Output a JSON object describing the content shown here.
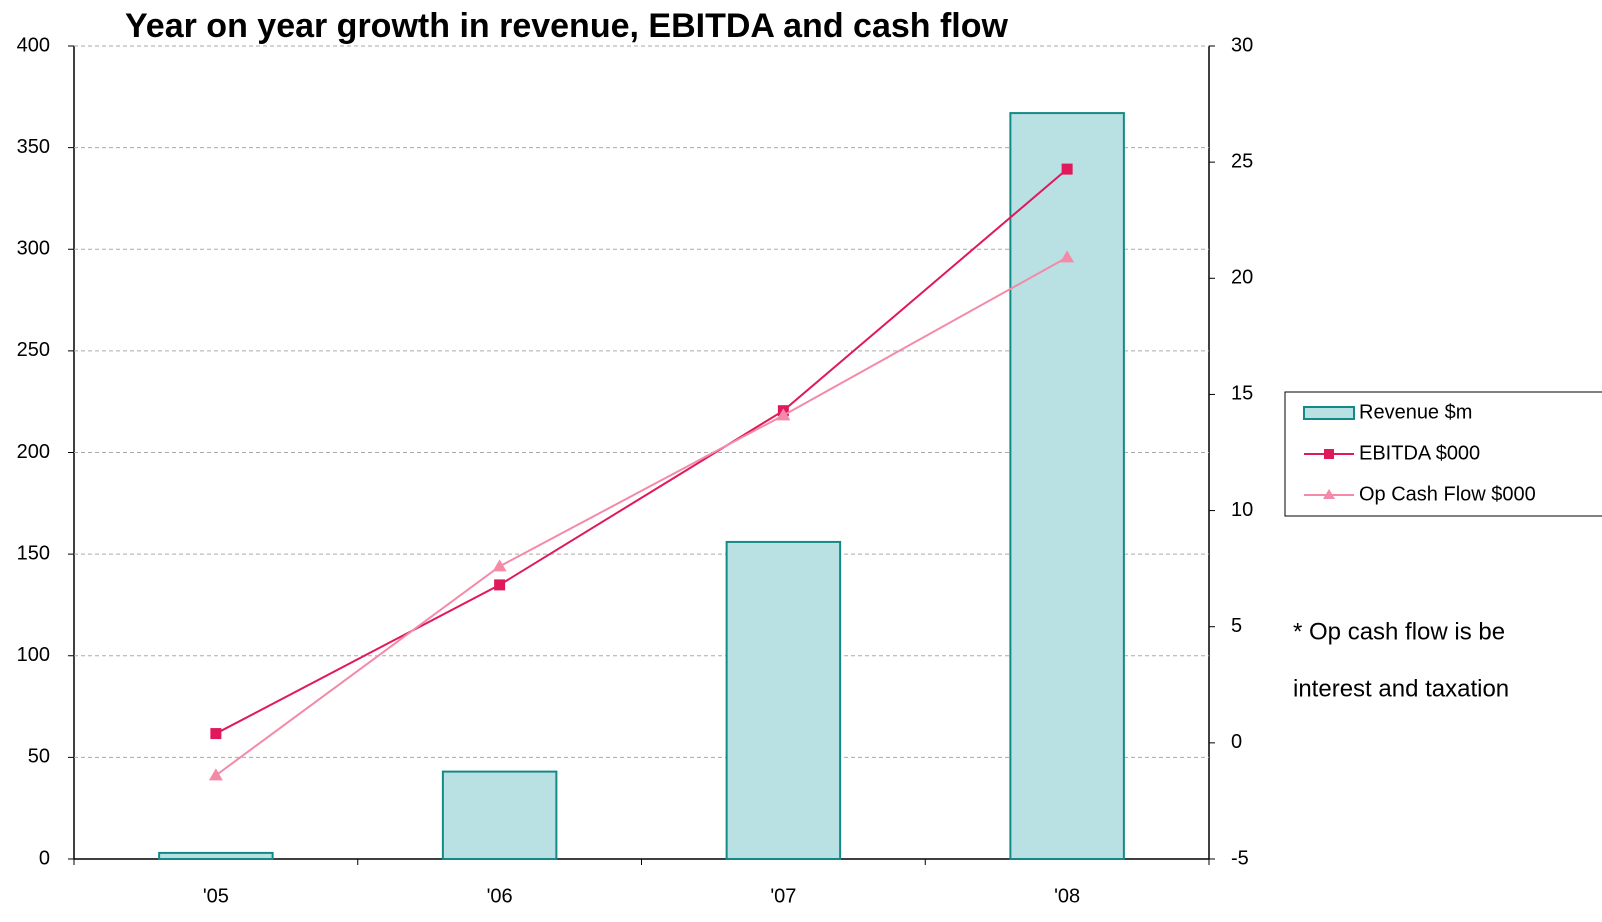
{
  "chart_data": {
    "type": "bar_line",
    "title": "Year on year growth in revenue, EBITDA and cash flow",
    "categories": [
      "'05",
      "'06",
      "'07",
      "'08"
    ],
    "series": [
      {
        "name": "Revenue $m",
        "type": "bar",
        "color": "#b9e0e3",
        "edge_color": "#138a86",
        "values": [
          3,
          43,
          156,
          367
        ]
      },
      {
        "name": "EBITDA $000",
        "type": "line",
        "marker": "square",
        "color": "#e0185c",
        "axis": "y2",
        "values": [
          0.4,
          6.8,
          14.3,
          24.7
        ]
      },
      {
        "name": "Op Cash Flow $000",
        "type": "line",
        "marker": "triangle",
        "color": "#f48aa8",
        "axis": "y2",
        "values": [
          -1.4,
          7.6,
          14.1,
          20.9
        ]
      }
    ],
    "ylim": [
      0,
      400
    ],
    "yticks": [
      0,
      50,
      100,
      150,
      200,
      250,
      300,
      350,
      400
    ],
    "y2lim": [
      -5,
      30
    ],
    "y2ticks": [
      -5,
      0,
      5,
      10,
      15,
      20,
      25,
      30
    ],
    "grid": true,
    "legend": "right",
    "annotation": [
      "* Op cash flow is be",
      "interest and taxation"
    ]
  }
}
